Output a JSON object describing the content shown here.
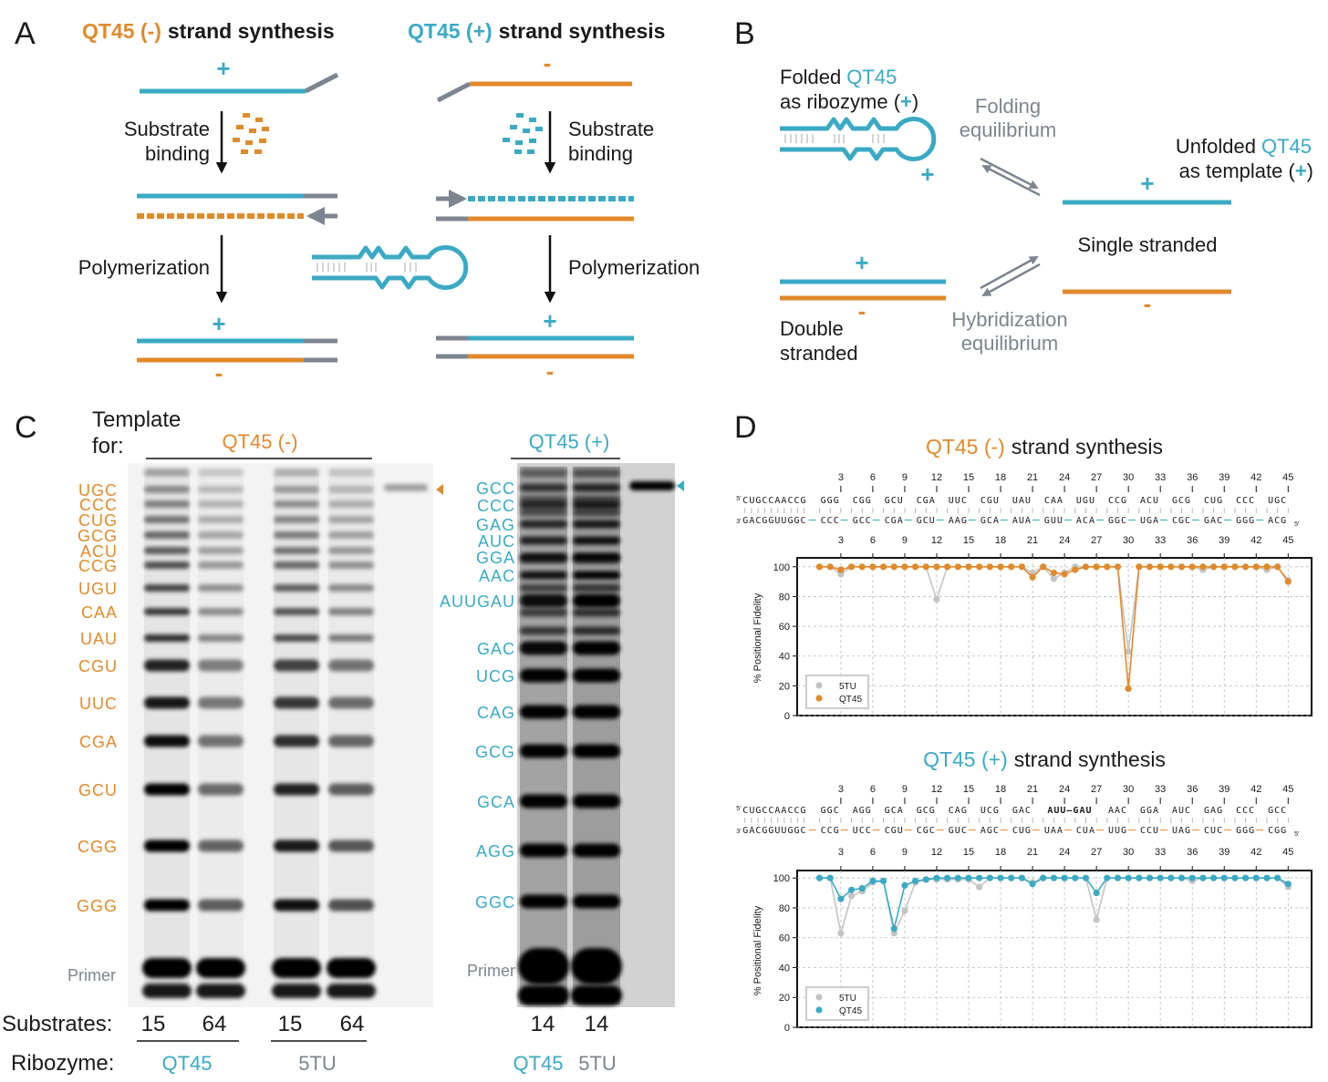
{
  "panel_a": {
    "letter": "A",
    "minus_title": {
      "strand": "QT45 (-)",
      "rest": "strand synthesis"
    },
    "plus_title": {
      "strand": "QT45 (+)",
      "rest": "strand synthesis"
    },
    "plus": "+",
    "minus": "-",
    "substrate": "Substrate",
    "binding": "binding",
    "polymerization": "Polymerization"
  },
  "panel_b": {
    "letter": "B",
    "folded": "Folded",
    "qt45": "QT45",
    "as_ribozyme": "as ribozyme (",
    "plus": "+",
    "close": ")",
    "folding": "Folding",
    "equilibrium": "equilibrium",
    "unfolded": "Unfolded",
    "as_template": "as template (",
    "single_stranded": "Single stranded",
    "double": "Double",
    "stranded": "stranded",
    "hybridization": "Hybridization",
    "minus": "-"
  },
  "panel_c": {
    "letter": "C",
    "template": "Template",
    "for": "for:",
    "minus_template": "QT45 (-)",
    "plus_template": "QT45 (+)",
    "left_bands": [
      "UGC",
      "CCC",
      "CUG",
      "GCG",
      "ACU",
      "CCG",
      "UGU",
      "CAA",
      "UAU",
      "CGU",
      "UUC",
      "CGA",
      "GCU",
      "CGG",
      "GGG"
    ],
    "right_bands": [
      "GCC",
      "CCC",
      "GAG",
      "AUC",
      "GGA",
      "AAC",
      "AUUGAU",
      "GAC",
      "UCG",
      "CAG",
      "GCG",
      "GCA",
      "AGG",
      "GGC"
    ],
    "primer": "Primer",
    "substrates_label": "Substrates:",
    "substrates": [
      15,
      64,
      15,
      64,
      14,
      14
    ],
    "ribozyme_label": "Ribozyme:",
    "ribozymes": [
      "QT45",
      "5TU",
      "QT45",
      "5TU"
    ]
  },
  "panel_d": {
    "letter": "D"
  },
  "chart_data": [
    {
      "type": "line",
      "title": {
        "strand": "QT45 (-)",
        "rest": "strand synthesis"
      },
      "sequence": {
        "top_prime": "5′",
        "top_primer": "CUGCCAACCG",
        "top_codons": [
          "GGG",
          "CGG",
          "GCU",
          "CGA",
          "UUC",
          "CGU",
          "UAU",
          "CAA",
          "UGU",
          "CCG",
          "ACU",
          "GCG",
          "CUG",
          "CCC",
          "UGC"
        ],
        "bottom_prime": "3′",
        "bottom_primer": "GACGGUUGGC",
        "bottom_codons": [
          "CCC",
          "GCC",
          "CGA",
          "GCU",
          "AAG",
          "GCA",
          "AUA",
          "GUU",
          "ACA",
          "GGC",
          "UGA",
          "CGC",
          "GAC",
          "GGG",
          "ACG"
        ],
        "bottom_end": "5′"
      },
      "ylabel": "% Positional Fidelity",
      "x": [
        1,
        2,
        3,
        4,
        5,
        6,
        7,
        8,
        9,
        10,
        11,
        12,
        13,
        14,
        15,
        16,
        17,
        18,
        19,
        20,
        21,
        22,
        23,
        24,
        25,
        26,
        27,
        28,
        29,
        30,
        31,
        32,
        33,
        34,
        35,
        36,
        37,
        38,
        39,
        40,
        41,
        42,
        43,
        44,
        45
      ],
      "xlim": [
        -1.1,
        47.2
      ],
      "xticks": [
        3,
        6,
        9,
        12,
        15,
        18,
        21,
        24,
        27,
        30,
        33,
        36,
        39,
        42,
        45
      ],
      "ylim": [
        0,
        106
      ],
      "yticks": [
        0,
        20,
        40,
        60,
        80,
        100
      ],
      "grid": true,
      "legend": "lower left",
      "series": [
        {
          "name": "5TU",
          "color": "#c4c4c4",
          "values": [
            100,
            100,
            95,
            100,
            100,
            100,
            100,
            100,
            100,
            100,
            100,
            78,
            100,
            100,
            100,
            100,
            100,
            100,
            100,
            100,
            96,
            100,
            92,
            96,
            100,
            100,
            100,
            100,
            100,
            43,
            100,
            100,
            100,
            100,
            100,
            100,
            98,
            100,
            100,
            100,
            100,
            100,
            98,
            100,
            91
          ]
        },
        {
          "name": "QT45",
          "color": "#e08a2c",
          "values": [
            100,
            100,
            98,
            100,
            100,
            100,
            100,
            100,
            100,
            100,
            100,
            100,
            100,
            100,
            100,
            100,
            100,
            100,
            100,
            100,
            93,
            100,
            96,
            95,
            98,
            100,
            100,
            100,
            100,
            18,
            100,
            100,
            100,
            100,
            100,
            100,
            100,
            100,
            100,
            100,
            100,
            100,
            100,
            100,
            90
          ]
        }
      ]
    },
    {
      "type": "line",
      "title": {
        "strand": "QT45 (+)",
        "rest": "strand synthesis"
      },
      "sequence": {
        "top_prime": "5′",
        "top_primer": "CUGCCAACCG",
        "top_codons": [
          "GGC",
          "AGG",
          "GCA",
          "GCG",
          "CAG",
          "UCG",
          "GAC",
          "AUU–GAU",
          "AAC",
          "GGA",
          "AUC",
          "GAG",
          "CCC",
          "GCC"
        ],
        "bottom_prime": "3′",
        "bottom_primer": "GACGGUUGGC",
        "bottom_codons": [
          "CCG",
          "UCC",
          "CGU",
          "CGC",
          "GUC",
          "AGC",
          "CUG",
          "UAA",
          "CUA",
          "UUG",
          "CCU",
          "UAG",
          "CUC",
          "GGG",
          "CGG"
        ],
        "bottom_end": "5′"
      },
      "ylabel": "% Positional Fidelity",
      "x": [
        1,
        2,
        3,
        4,
        5,
        6,
        7,
        8,
        9,
        10,
        11,
        12,
        13,
        14,
        15,
        16,
        17,
        18,
        19,
        20,
        21,
        22,
        23,
        24,
        25,
        26,
        27,
        28,
        29,
        30,
        31,
        32,
        33,
        34,
        35,
        36,
        37,
        38,
        39,
        40,
        41,
        42,
        43,
        44,
        45
      ],
      "xlim": [
        -1.1,
        47.2
      ],
      "xticks": [
        3,
        6,
        9,
        12,
        15,
        18,
        21,
        24,
        27,
        30,
        33,
        36,
        39,
        42,
        45
      ],
      "ylim": [
        0,
        105
      ],
      "yticks": [
        0,
        20,
        40,
        60,
        80,
        100
      ],
      "grid": true,
      "legend": "lower left",
      "series": [
        {
          "name": "5TU",
          "color": "#c4c4c4",
          "values": [
            100,
            100,
            63,
            88,
            91,
            97,
            98,
            63,
            78,
            97,
            99,
            99,
            99,
            99,
            99,
            94,
            100,
            100,
            100,
            100,
            97,
            100,
            100,
            100,
            100,
            100,
            72,
            100,
            100,
            100,
            100,
            100,
            100,
            100,
            100,
            98,
            100,
            100,
            100,
            100,
            100,
            100,
            100,
            100,
            94
          ]
        },
        {
          "name": "QT45",
          "color": "#3aaac4",
          "values": [
            100,
            100,
            86,
            92,
            93,
            98,
            98,
            66,
            95,
            98,
            99,
            100,
            100,
            100,
            100,
            100,
            100,
            100,
            100,
            100,
            96,
            100,
            100,
            100,
            100,
            100,
            90,
            100,
            100,
            100,
            100,
            100,
            100,
            100,
            100,
            100,
            100,
            100,
            100,
            100,
            100,
            100,
            100,
            100,
            96
          ]
        }
      ]
    }
  ]
}
